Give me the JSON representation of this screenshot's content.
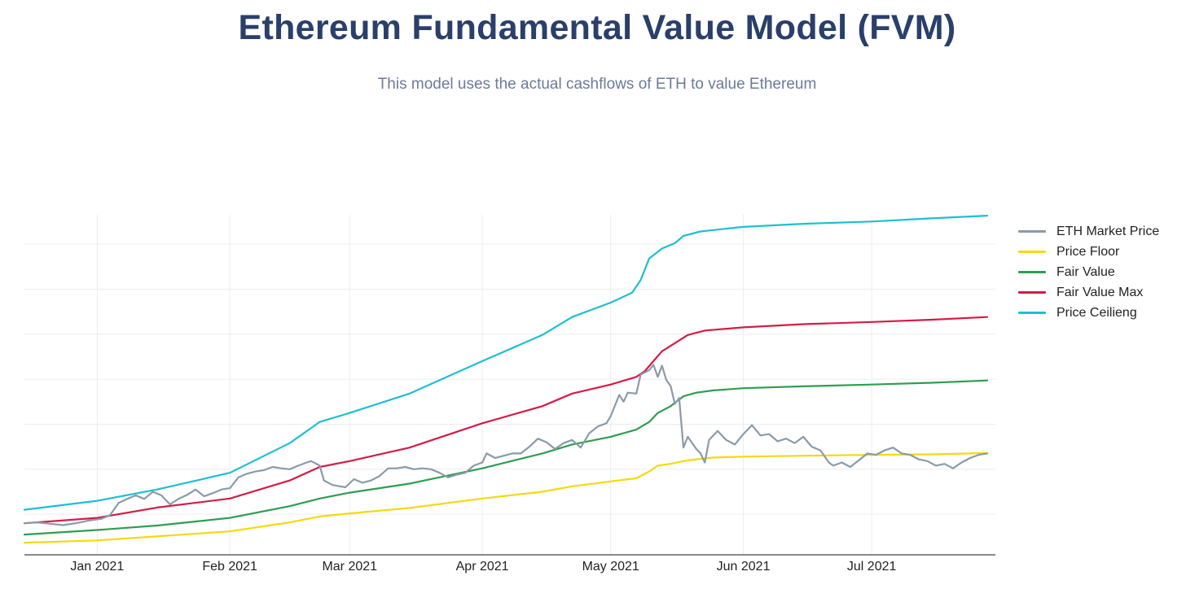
{
  "chart_data": {
    "type": "line",
    "title": "Ethereum Fundamental Value Model (FVM)",
    "subtitle": "This model uses the actual cashflows of ETH to value Ethereum",
    "xlabel": "",
    "ylabel": "",
    "x_tick_labels": [
      {
        "date": "2021-01-01",
        "label": "Jan 2021"
      },
      {
        "date": "2021-02-01",
        "label": "Feb 2021"
      },
      {
        "date": "2021-03-01",
        "label": "Mar 2021"
      },
      {
        "date": "2021-04-01",
        "label": "Apr 2021"
      },
      {
        "date": "2021-05-01",
        "label": "May 2021"
      },
      {
        "date": "2021-06-01",
        "label": "Jun 2021"
      },
      {
        "date": "2021-07-01",
        "label": "Jul 2021"
      }
    ],
    "xlim": [
      "2020-12-15",
      "2021-07-28"
    ],
    "ylim": [
      -0.1,
      7.45
    ],
    "y_gridlines": [
      0.8,
      1.8,
      2.8,
      3.8,
      4.8,
      5.8,
      6.8
    ],
    "grid": true,
    "legend_position": "right",
    "series": [
      {
        "name": "ETH Market Price",
        "color": "#8a9ba8",
        "points": [
          [
            "2020-12-15",
            0.6
          ],
          [
            "2020-12-18",
            0.62
          ],
          [
            "2020-12-21",
            0.59
          ],
          [
            "2020-12-24",
            0.56
          ],
          [
            "2020-12-27",
            0.6
          ],
          [
            "2020-12-30",
            0.66
          ],
          [
            "2021-01-02",
            0.7
          ],
          [
            "2021-01-04",
            0.78
          ],
          [
            "2021-01-06",
            1.05
          ],
          [
            "2021-01-08",
            1.14
          ],
          [
            "2021-01-10",
            1.22
          ],
          [
            "2021-01-12",
            1.14
          ],
          [
            "2021-01-14",
            1.3
          ],
          [
            "2021-01-16",
            1.22
          ],
          [
            "2021-01-18",
            1.02
          ],
          [
            "2021-01-20",
            1.14
          ],
          [
            "2021-01-22",
            1.23
          ],
          [
            "2021-01-24",
            1.35
          ],
          [
            "2021-01-26",
            1.2
          ],
          [
            "2021-01-28",
            1.27
          ],
          [
            "2021-01-30",
            1.35
          ],
          [
            "2021-02-01",
            1.38
          ],
          [
            "2021-02-03",
            1.62
          ],
          [
            "2021-02-05",
            1.7
          ],
          [
            "2021-02-07",
            1.75
          ],
          [
            "2021-02-09",
            1.78
          ],
          [
            "2021-02-11",
            1.85
          ],
          [
            "2021-02-13",
            1.82
          ],
          [
            "2021-02-15",
            1.8
          ],
          [
            "2021-02-17",
            1.88
          ],
          [
            "2021-02-19",
            1.95
          ],
          [
            "2021-02-20",
            1.98
          ],
          [
            "2021-02-22",
            1.88
          ],
          [
            "2021-02-23",
            1.55
          ],
          [
            "2021-02-25",
            1.45
          ],
          [
            "2021-02-28",
            1.4
          ],
          [
            "2021-03-02",
            1.58
          ],
          [
            "2021-03-04",
            1.5
          ],
          [
            "2021-03-06",
            1.55
          ],
          [
            "2021-03-08",
            1.65
          ],
          [
            "2021-03-10",
            1.82
          ],
          [
            "2021-03-12",
            1.82
          ],
          [
            "2021-03-14",
            1.85
          ],
          [
            "2021-03-16",
            1.8
          ],
          [
            "2021-03-18",
            1.82
          ],
          [
            "2021-03-20",
            1.8
          ],
          [
            "2021-03-22",
            1.72
          ],
          [
            "2021-03-24",
            1.62
          ],
          [
            "2021-03-26",
            1.68
          ],
          [
            "2021-03-28",
            1.72
          ],
          [
            "2021-03-30",
            1.88
          ],
          [
            "2021-04-01",
            1.95
          ],
          [
            "2021-04-02",
            2.15
          ],
          [
            "2021-04-04",
            2.05
          ],
          [
            "2021-04-06",
            2.1
          ],
          [
            "2021-04-08",
            2.15
          ],
          [
            "2021-04-10",
            2.15
          ],
          [
            "2021-04-12",
            2.3
          ],
          [
            "2021-04-14",
            2.48
          ],
          [
            "2021-04-16",
            2.4
          ],
          [
            "2021-04-18",
            2.25
          ],
          [
            "2021-04-20",
            2.38
          ],
          [
            "2021-04-22",
            2.45
          ],
          [
            "2021-04-24",
            2.28
          ],
          [
            "2021-04-26",
            2.6
          ],
          [
            "2021-04-28",
            2.75
          ],
          [
            "2021-04-30",
            2.82
          ],
          [
            "2021-05-01",
            2.98
          ],
          [
            "2021-05-03",
            3.45
          ],
          [
            "2021-05-04",
            3.3
          ],
          [
            "2021-05-05",
            3.5
          ],
          [
            "2021-05-07",
            3.48
          ],
          [
            "2021-05-08",
            3.9
          ],
          [
            "2021-05-10",
            4.0
          ],
          [
            "2021-05-11",
            4.12
          ],
          [
            "2021-05-12",
            3.85
          ],
          [
            "2021-05-13",
            4.1
          ],
          [
            "2021-05-14",
            3.78
          ],
          [
            "2021-05-15",
            3.65
          ],
          [
            "2021-05-16",
            3.25
          ],
          [
            "2021-05-17",
            3.38
          ],
          [
            "2021-05-18",
            2.28
          ],
          [
            "2021-05-19",
            2.52
          ],
          [
            "2021-05-21",
            2.25
          ],
          [
            "2021-05-22",
            2.15
          ],
          [
            "2021-05-23",
            1.95
          ],
          [
            "2021-05-24",
            2.45
          ],
          [
            "2021-05-26",
            2.65
          ],
          [
            "2021-05-28",
            2.45
          ],
          [
            "2021-05-30",
            2.35
          ],
          [
            "2021-06-01",
            2.58
          ],
          [
            "2021-06-03",
            2.78
          ],
          [
            "2021-06-05",
            2.55
          ],
          [
            "2021-06-07",
            2.58
          ],
          [
            "2021-06-09",
            2.42
          ],
          [
            "2021-06-11",
            2.48
          ],
          [
            "2021-06-13",
            2.38
          ],
          [
            "2021-06-15",
            2.52
          ],
          [
            "2021-06-17",
            2.3
          ],
          [
            "2021-06-19",
            2.22
          ],
          [
            "2021-06-21",
            1.95
          ],
          [
            "2021-06-22",
            1.88
          ],
          [
            "2021-06-24",
            1.95
          ],
          [
            "2021-06-26",
            1.85
          ],
          [
            "2021-06-28",
            2.0
          ],
          [
            "2021-06-30",
            2.15
          ],
          [
            "2021-07-02",
            2.12
          ],
          [
            "2021-07-04",
            2.22
          ],
          [
            "2021-07-06",
            2.28
          ],
          [
            "2021-07-08",
            2.15
          ],
          [
            "2021-07-10",
            2.12
          ],
          [
            "2021-07-12",
            2.02
          ],
          [
            "2021-07-14",
            1.98
          ],
          [
            "2021-07-16",
            1.88
          ],
          [
            "2021-07-18",
            1.92
          ],
          [
            "2021-07-20",
            1.82
          ],
          [
            "2021-07-22",
            1.95
          ],
          [
            "2021-07-24",
            2.05
          ],
          [
            "2021-07-26",
            2.12
          ],
          [
            "2021-07-28",
            2.15
          ]
        ]
      },
      {
        "name": "Price Floor",
        "color": "#f5d90f",
        "points": [
          [
            "2020-12-15",
            0.17
          ],
          [
            "2021-01-01",
            0.22
          ],
          [
            "2021-02-01",
            0.42
          ],
          [
            "2021-02-15",
            0.62
          ],
          [
            "2021-02-22",
            0.75
          ],
          [
            "2021-03-01",
            0.82
          ],
          [
            "2021-03-15",
            0.94
          ],
          [
            "2021-04-01",
            1.15
          ],
          [
            "2021-04-15",
            1.3
          ],
          [
            "2021-04-22",
            1.42
          ],
          [
            "2021-05-01",
            1.53
          ],
          [
            "2021-05-07",
            1.6
          ],
          [
            "2021-05-10",
            1.75
          ],
          [
            "2021-05-12",
            1.88
          ],
          [
            "2021-05-15",
            1.92
          ],
          [
            "2021-05-18",
            1.98
          ],
          [
            "2021-05-21",
            2.02
          ],
          [
            "2021-05-25",
            2.06
          ],
          [
            "2021-06-01",
            2.08
          ],
          [
            "2021-06-15",
            2.1
          ],
          [
            "2021-07-01",
            2.12
          ],
          [
            "2021-07-15",
            2.13
          ],
          [
            "2021-07-28",
            2.16
          ]
        ]
      },
      {
        "name": "Fair Value",
        "color": "#2e9e50",
        "points": [
          [
            "2020-12-15",
            0.35
          ],
          [
            "2021-01-01",
            0.45
          ],
          [
            "2021-01-15",
            0.55
          ],
          [
            "2021-02-01",
            0.72
          ],
          [
            "2021-02-15",
            0.98
          ],
          [
            "2021-02-22",
            1.15
          ],
          [
            "2021-03-01",
            1.28
          ],
          [
            "2021-03-15",
            1.48
          ],
          [
            "2021-04-01",
            1.82
          ],
          [
            "2021-04-15",
            2.15
          ],
          [
            "2021-04-22",
            2.35
          ],
          [
            "2021-05-01",
            2.52
          ],
          [
            "2021-05-07",
            2.68
          ],
          [
            "2021-05-10",
            2.85
          ],
          [
            "2021-05-12",
            3.05
          ],
          [
            "2021-05-15",
            3.2
          ],
          [
            "2021-05-18",
            3.42
          ],
          [
            "2021-05-21",
            3.5
          ],
          [
            "2021-05-25",
            3.55
          ],
          [
            "2021-06-01",
            3.6
          ],
          [
            "2021-06-15",
            3.64
          ],
          [
            "2021-07-01",
            3.68
          ],
          [
            "2021-07-15",
            3.72
          ],
          [
            "2021-07-28",
            3.77
          ]
        ]
      },
      {
        "name": "Fair Value Max",
        "color": "#d41c47",
        "points": [
          [
            "2020-12-15",
            0.6
          ],
          [
            "2021-01-01",
            0.72
          ],
          [
            "2021-01-15",
            0.95
          ],
          [
            "2021-02-01",
            1.15
          ],
          [
            "2021-02-15",
            1.55
          ],
          [
            "2021-02-22",
            1.85
          ],
          [
            "2021-03-01",
            1.98
          ],
          [
            "2021-03-15",
            2.28
          ],
          [
            "2021-04-01",
            2.82
          ],
          [
            "2021-04-15",
            3.2
          ],
          [
            "2021-04-22",
            3.48
          ],
          [
            "2021-05-01",
            3.68
          ],
          [
            "2021-05-07",
            3.85
          ],
          [
            "2021-05-09",
            3.98
          ],
          [
            "2021-05-11",
            4.2
          ],
          [
            "2021-05-13",
            4.42
          ],
          [
            "2021-05-16",
            4.6
          ],
          [
            "2021-05-19",
            4.78
          ],
          [
            "2021-05-23",
            4.88
          ],
          [
            "2021-06-01",
            4.95
          ],
          [
            "2021-06-15",
            5.02
          ],
          [
            "2021-07-01",
            5.07
          ],
          [
            "2021-07-15",
            5.12
          ],
          [
            "2021-07-28",
            5.18
          ]
        ]
      },
      {
        "name": "Price Ceilieng",
        "color": "#1fbfd2",
        "points": [
          [
            "2020-12-15",
            0.9
          ],
          [
            "2021-01-01",
            1.1
          ],
          [
            "2021-01-15",
            1.35
          ],
          [
            "2021-02-01",
            1.72
          ],
          [
            "2021-02-15",
            2.38
          ],
          [
            "2021-02-22",
            2.85
          ],
          [
            "2021-03-01",
            3.05
          ],
          [
            "2021-03-15",
            3.48
          ],
          [
            "2021-04-01",
            4.2
          ],
          [
            "2021-04-15",
            4.78
          ],
          [
            "2021-04-22",
            5.18
          ],
          [
            "2021-05-01",
            5.5
          ],
          [
            "2021-05-06",
            5.72
          ],
          [
            "2021-05-08",
            6.0
          ],
          [
            "2021-05-10",
            6.48
          ],
          [
            "2021-05-13",
            6.7
          ],
          [
            "2021-05-16",
            6.82
          ],
          [
            "2021-05-18",
            6.98
          ],
          [
            "2021-05-22",
            7.08
          ],
          [
            "2021-06-01",
            7.18
          ],
          [
            "2021-06-15",
            7.25
          ],
          [
            "2021-07-01",
            7.3
          ],
          [
            "2021-07-15",
            7.37
          ],
          [
            "2021-07-28",
            7.43
          ]
        ]
      }
    ]
  }
}
